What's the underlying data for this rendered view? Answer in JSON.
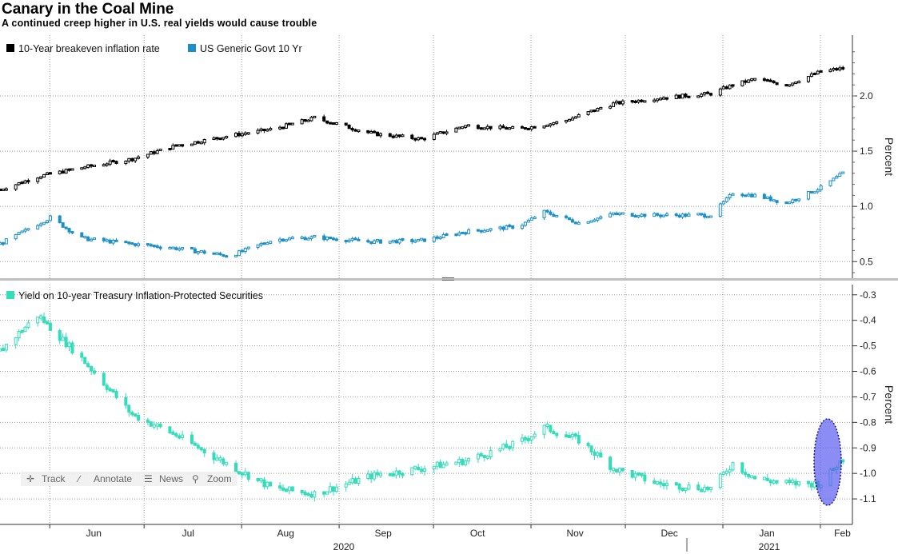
{
  "title": "Canary in the Coal Mine",
  "subtitle": "A continued creep higher in U.S. real yields would cause trouble",
  "toolbar": {
    "track": "Track",
    "annotate": "Annotate",
    "news": "News",
    "zoom": "Zoom"
  },
  "colors": {
    "breakeven": "#000000",
    "govt": "#1a8fc9",
    "tips": "#33ddb9",
    "highlight": "#5b5cf0"
  },
  "x_axis": {
    "months": [
      "Jun",
      "Jul",
      "Aug",
      "Sep",
      "Oct",
      "Nov",
      "Dec",
      "Jan",
      "Feb"
    ],
    "years": [
      "2020",
      "2021"
    ]
  },
  "chart_data": [
    {
      "type": "line",
      "title": "",
      "ylabel": "Percent",
      "ylim": [
        0.35,
        2.55
      ],
      "yticks": [
        "0.5",
        "1.0",
        "1.5",
        "2.0"
      ],
      "legend": "top-left",
      "grid": true,
      "series": [
        {
          "name": "10-Year breakeven inflation rate",
          "x": [
            "2020-05-20",
            "2020-06-01",
            "2020-06-15",
            "2020-07-01",
            "2020-07-15",
            "2020-08-01",
            "2020-08-15",
            "2020-08-28",
            "2020-09-15",
            "2020-10-01",
            "2020-10-15",
            "2020-11-01",
            "2020-11-15",
            "2020-12-01",
            "2020-12-15",
            "2021-01-01",
            "2021-01-08",
            "2021-01-15",
            "2021-01-25",
            "2021-02-05",
            "2021-02-12"
          ],
          "values": [
            1.15,
            1.27,
            1.35,
            1.43,
            1.55,
            1.64,
            1.7,
            1.8,
            1.66,
            1.61,
            1.73,
            1.7,
            1.77,
            1.93,
            1.98,
            2.02,
            2.1,
            2.15,
            2.1,
            2.22,
            2.25
          ]
        },
        {
          "name": "US Generic Govt 10 Yr",
          "x": [
            "2020-05-20",
            "2020-06-05",
            "2020-06-15",
            "2020-07-01",
            "2020-07-15",
            "2020-08-01",
            "2020-08-15",
            "2020-08-28",
            "2020-09-15",
            "2020-10-01",
            "2020-10-15",
            "2020-11-01",
            "2020-11-09",
            "2020-11-20",
            "2020-12-01",
            "2020-12-15",
            "2021-01-01",
            "2021-01-08",
            "2021-01-15",
            "2021-01-25",
            "2021-02-05",
            "2021-02-12"
          ],
          "values": [
            0.66,
            0.9,
            0.71,
            0.66,
            0.62,
            0.55,
            0.7,
            0.72,
            0.68,
            0.69,
            0.77,
            0.82,
            0.95,
            0.85,
            0.93,
            0.92,
            0.92,
            1.12,
            1.1,
            1.03,
            1.17,
            1.3
          ]
        }
      ]
    },
    {
      "type": "line",
      "title": "",
      "ylabel": "Percent",
      "ylim": [
        -1.2,
        -0.26
      ],
      "yticks": [
        "-0.3",
        "-0.4",
        "-0.5",
        "-0.6",
        "-0.7",
        "-0.8",
        "-0.9",
        "-1.0",
        "-1.1"
      ],
      "legend": "top-left",
      "grid": true,
      "series": [
        {
          "name": "Yield on 10-year Treasury Inflation-Protected Securities",
          "x": [
            "2020-05-20",
            "2020-06-01",
            "2020-06-15",
            "2020-07-01",
            "2020-07-15",
            "2020-08-01",
            "2020-08-15",
            "2020-08-28",
            "2020-09-15",
            "2020-10-01",
            "2020-10-15",
            "2020-11-01",
            "2020-11-09",
            "2020-11-20",
            "2020-12-01",
            "2020-12-15",
            "2021-01-01",
            "2021-01-08",
            "2021-01-15",
            "2021-01-25",
            "2021-02-05",
            "2021-02-12"
          ],
          "values": [
            -0.52,
            -0.38,
            -0.55,
            -0.77,
            -0.85,
            -0.97,
            -1.06,
            -1.08,
            -1.01,
            -0.98,
            -0.95,
            -0.88,
            -0.82,
            -0.87,
            -0.98,
            -1.04,
            -1.06,
            -0.96,
            -1.02,
            -1.04,
            -1.04,
            -0.94
          ]
        }
      ]
    }
  ]
}
